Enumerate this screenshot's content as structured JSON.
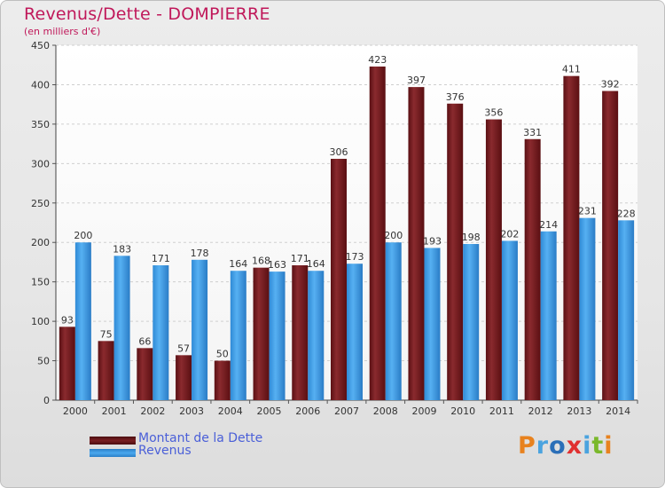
{
  "chart_data": {
    "type": "bar",
    "title": "Revenus/Dette - DOMPIERRE",
    "subtitle": "(en milliers d'€)",
    "categories": [
      "2000",
      "2001",
      "2002",
      "2003",
      "2004",
      "2005",
      "2006",
      "2007",
      "2008",
      "2009",
      "2010",
      "2011",
      "2012",
      "2013",
      "2014"
    ],
    "series": [
      {
        "name": "Montant de la Dette",
        "color": "#7a1f22",
        "values": [
          93,
          75,
          66,
          57,
          50,
          168,
          171,
          306,
          423,
          397,
          376,
          356,
          331,
          411,
          392
        ]
      },
      {
        "name": "Revenus",
        "color": "#3f9ee6",
        "values": [
          200,
          183,
          171,
          178,
          164,
          163,
          164,
          173,
          200,
          193,
          198,
          202,
          214,
          231,
          228
        ]
      }
    ],
    "ylim": [
      0,
      450
    ],
    "yticks": [
      0,
      50,
      100,
      150,
      200,
      250,
      300,
      350,
      400,
      450
    ],
    "grid": true,
    "data_labels": true,
    "legend_position": "bottom-left"
  },
  "logo": {
    "text": "Proxiti",
    "colors": [
      "#e8821e",
      "#4aa3df",
      "#2b6fb8",
      "#e03030",
      "#4aa3df",
      "#7ab82b",
      "#e8821e"
    ]
  }
}
